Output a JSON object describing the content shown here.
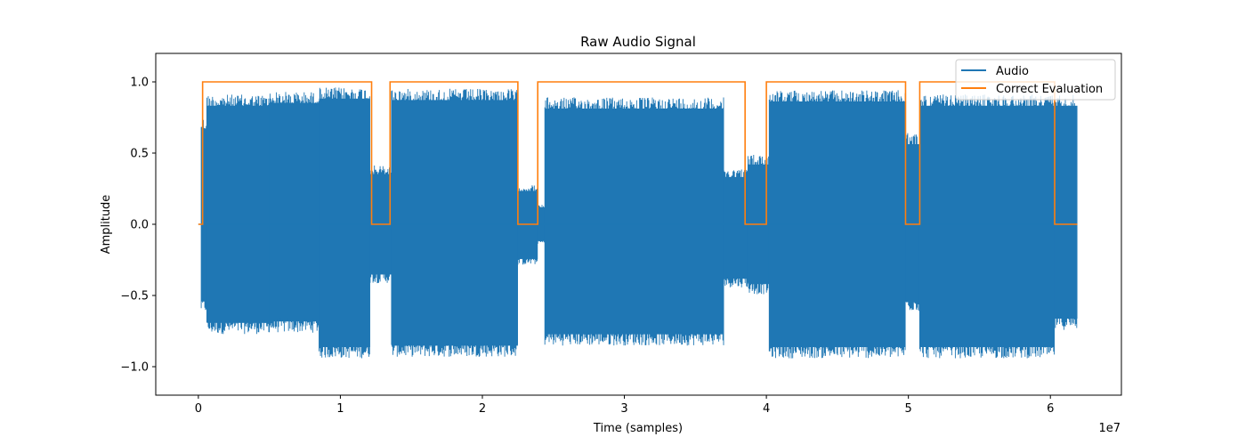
{
  "chart_data": {
    "type": "line",
    "title": "Raw Audio Signal",
    "xlabel": "Time (samples)",
    "ylabel": "Amplitude",
    "x_offset_label": "1e7",
    "xlim": [
      -3000000,
      65000000
    ],
    "ylim": [
      -1.2,
      1.2
    ],
    "x_ticks": [
      0,
      10000000,
      20000000,
      30000000,
      40000000,
      50000000,
      60000000
    ],
    "x_tick_labels": [
      "0",
      "1",
      "2",
      "3",
      "4",
      "5",
      "6"
    ],
    "y_ticks": [
      -1.0,
      -0.5,
      0.0,
      0.5,
      1.0
    ],
    "y_tick_labels": [
      "−1.0",
      "−0.5",
      "0.0",
      "0.5",
      "1.0"
    ],
    "grid": false,
    "legend_position": "upper right",
    "series": [
      {
        "name": "Audio",
        "color": "#1f77b4",
        "style": "envelope",
        "segments": [
          {
            "x": [
              0,
              200000
            ],
            "upper": 0.0,
            "lower": 0.0
          },
          {
            "x": [
              200000,
              600000
            ],
            "upper": 0.76,
            "lower": -0.63
          },
          {
            "x": [
              600000,
              5000000
            ],
            "upper": 0.92,
            "lower": -0.78
          },
          {
            "x": [
              5000000,
              8500000
            ],
            "upper": 0.94,
            "lower": -0.77
          },
          {
            "x": [
              8500000,
              12100000
            ],
            "upper": 0.97,
            "lower": -0.95
          },
          {
            "x": [
              12100000,
              13600000
            ],
            "upper": 0.42,
            "lower": -0.42
          },
          {
            "x": [
              13600000,
              22500000
            ],
            "upper": 0.96,
            "lower": -0.94
          },
          {
            "x": [
              22500000,
              23900000
            ],
            "upper": 0.28,
            "lower": -0.29
          },
          {
            "x": [
              23900000,
              24400000
            ],
            "upper": 0.14,
            "lower": -0.14
          },
          {
            "x": [
              24400000,
              37000000
            ],
            "upper": 0.9,
            "lower": -0.86
          },
          {
            "x": [
              37000000,
              38700000
            ],
            "upper": 0.4,
            "lower": -0.45
          },
          {
            "x": [
              38700000,
              40200000
            ],
            "upper": 0.5,
            "lower": -0.5
          },
          {
            "x": [
              40200000,
              49800000
            ],
            "upper": 0.95,
            "lower": -0.95
          },
          {
            "x": [
              49800000,
              50800000
            ],
            "upper": 0.65,
            "lower": -0.62
          },
          {
            "x": [
              50800000,
              60300000
            ],
            "upper": 0.92,
            "lower": -0.95
          },
          {
            "x": [
              60300000,
              61900000
            ],
            "upper": 0.92,
            "lower": -0.75
          }
        ]
      },
      {
        "name": "Correct Evaluation",
        "color": "#ff7f0e",
        "style": "step",
        "x": [
          0,
          300000,
          300000,
          12200000,
          12200000,
          13500000,
          13500000,
          22500000,
          22500000,
          23900000,
          23900000,
          38500000,
          38500000,
          40000000,
          40000000,
          49800000,
          49800000,
          50800000,
          50800000,
          60300000,
          60300000,
          61900000
        ],
        "y": [
          0,
          0,
          1,
          1,
          0,
          0,
          1,
          1,
          0,
          0,
          1,
          1,
          0,
          0,
          1,
          1,
          0,
          0,
          1,
          1,
          0,
          0
        ]
      }
    ]
  }
}
